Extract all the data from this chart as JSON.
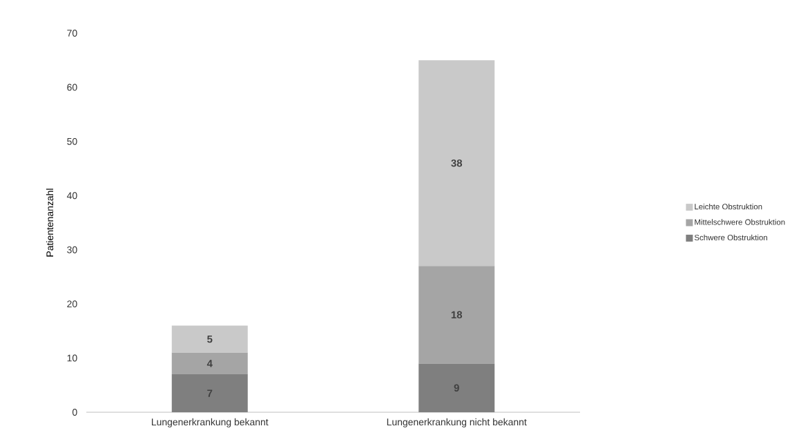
{
  "chart_data": {
    "type": "bar",
    "stacked": true,
    "ylabel": "Patientenanzahl",
    "categories": [
      "Lungenerkrankung bekannt",
      "Lungenerkrankung nicht bekannt"
    ],
    "series": [
      {
        "name": "Schwere Obstruktion",
        "color": "#7f7f7f",
        "values": [
          7,
          9
        ]
      },
      {
        "name": "Mittelschwere Obstruktion",
        "color": "#a5a5a5",
        "values": [
          4,
          18
        ]
      },
      {
        "name": "Leichte Obstruktion",
        "color": "#c9c9c9",
        "values": [
          5,
          38
        ]
      }
    ],
    "ylim": [
      0,
      70
    ],
    "yticks": [
      0,
      10,
      20,
      30,
      40,
      50,
      60,
      70
    ],
    "data_labels": true,
    "legend": "right",
    "grid": false
  }
}
